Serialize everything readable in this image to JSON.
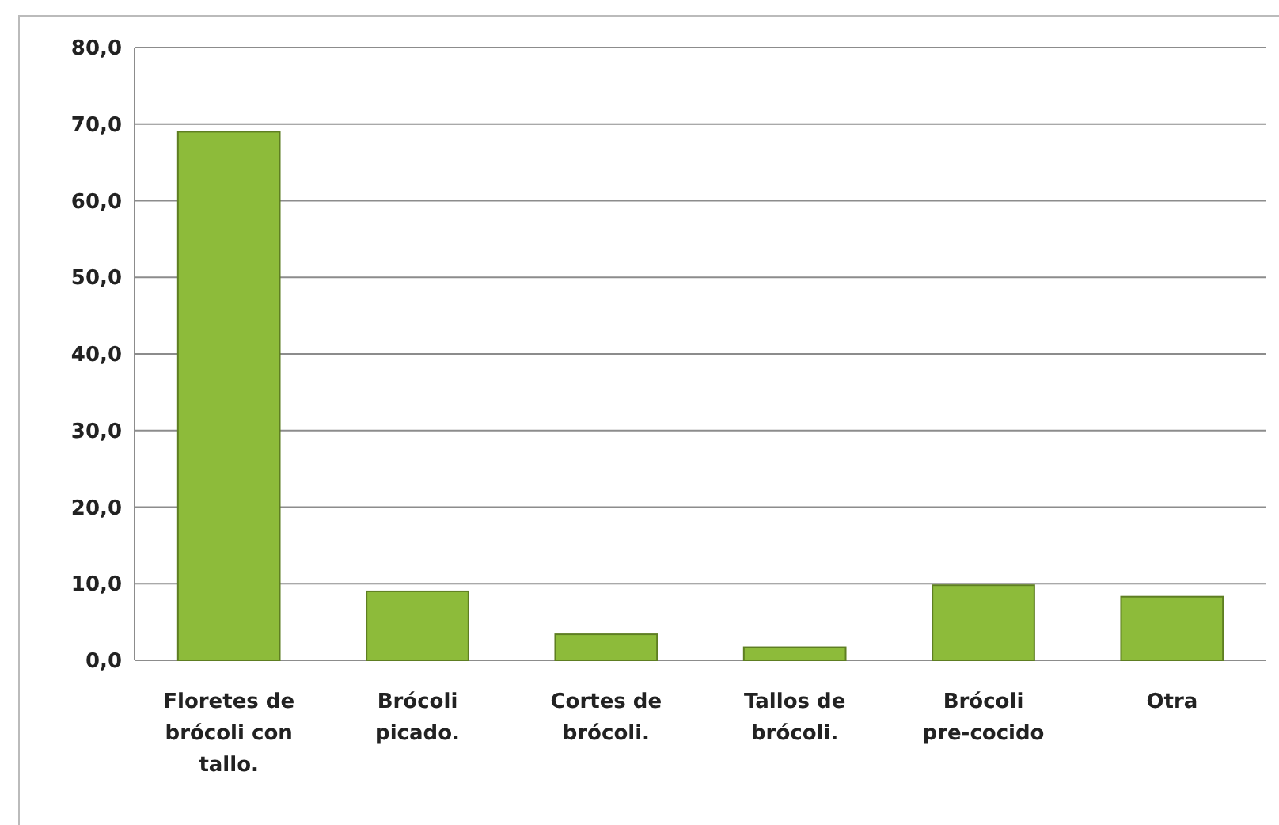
{
  "chart_data": {
    "type": "bar",
    "categories": [
      "Floretes de brócoli con tallo.",
      "Brócoli picado.",
      "Cortes de brócoli.",
      "Tallos de brócoli.",
      "Brócoli pre-cocido",
      "Otra"
    ],
    "values": [
      69.0,
      9.0,
      3.4,
      1.7,
      9.8,
      8.3
    ],
    "color": "#8dbb3a",
    "ylim": [
      0,
      80
    ],
    "yticks": [
      {
        "value": 0,
        "label": "0,0"
      },
      {
        "value": 10,
        "label": "10,0"
      },
      {
        "value": 20,
        "label": "20,0"
      },
      {
        "value": 30,
        "label": "30,0"
      },
      {
        "value": 40,
        "label": "40,0"
      },
      {
        "value": 50,
        "label": "50,0"
      },
      {
        "value": 60,
        "label": "60,0"
      },
      {
        "value": 70,
        "label": "70,0"
      },
      {
        "value": 80,
        "label": "80,0"
      }
    ],
    "grid": "y"
  }
}
